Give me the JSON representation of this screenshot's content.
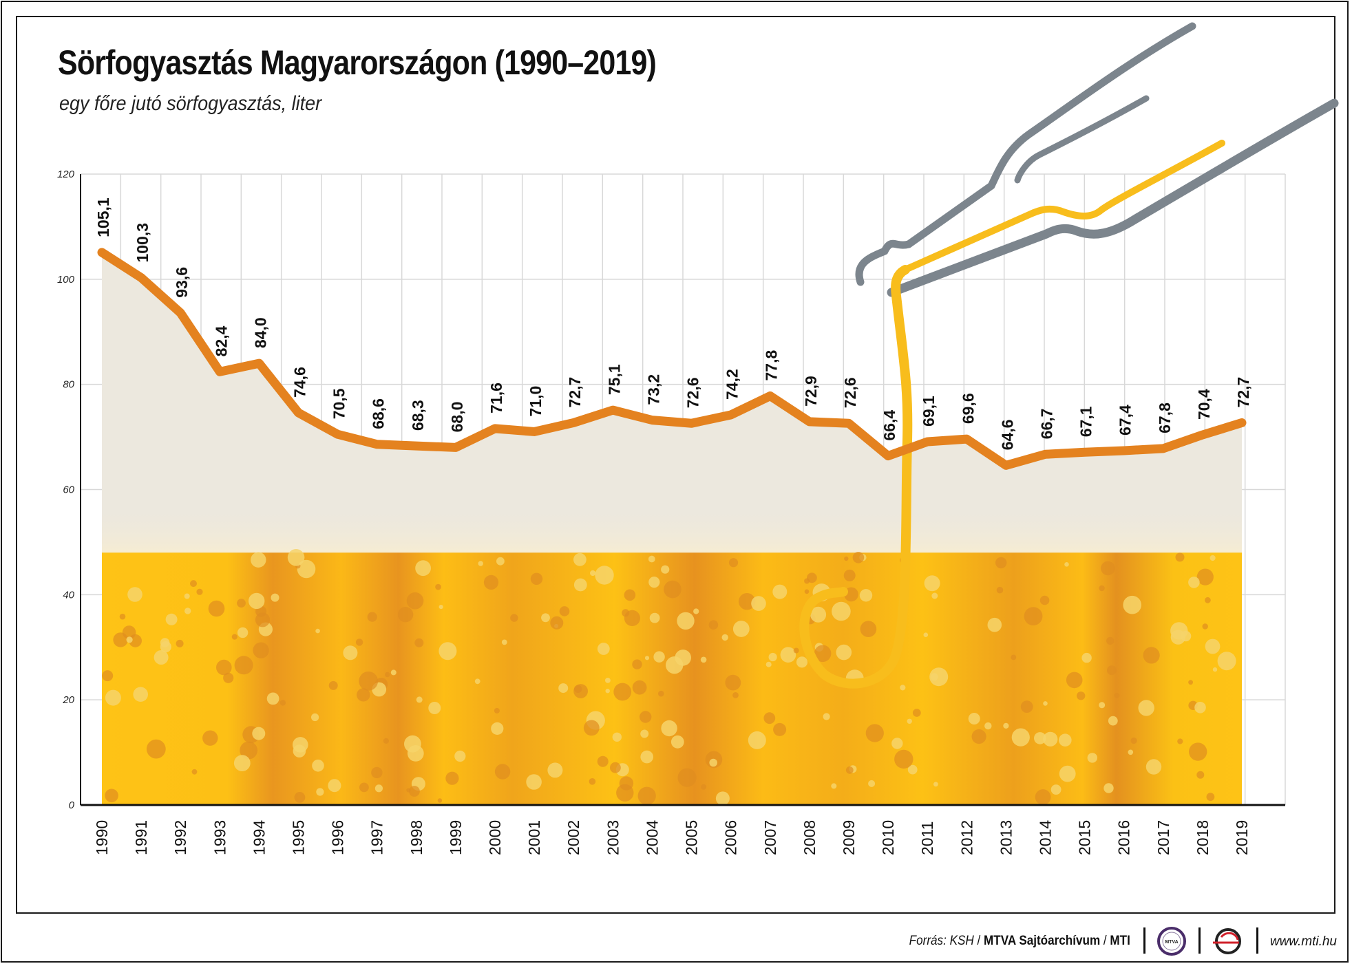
{
  "header": {
    "title": "Sörfogyasztás Magyarországon (1990–2019)",
    "subtitle": "egy főre jutó sörfogyasztás, liter"
  },
  "footer": {
    "source_label": "Forrás: KSH",
    "archive": "MTVA Sajtóarchívum",
    "agency": "MTI",
    "website": "www.mti.hu",
    "slash": "/"
  },
  "colors": {
    "line": "#e4821f",
    "area": "#ece8de",
    "beer_light": "#fdc115",
    "beer_dark": "#e4911f",
    "grid": "#d8d8d8",
    "bottle": "#7c858d",
    "pour": "#f8bd1c"
  },
  "chart_data": {
    "type": "line",
    "title": "Sörfogyasztás Magyarországon (1990–2019)",
    "ylabel": "egy főre jutó sörfogyasztás, liter",
    "xlabel": "",
    "ylim": [
      0,
      120
    ],
    "yticks": [
      0,
      20,
      40,
      60,
      80,
      100,
      120
    ],
    "grid": true,
    "categories": [
      "1990",
      "1991",
      "1992",
      "1993",
      "1994",
      "1995",
      "1996",
      "1997",
      "1998",
      "1999",
      "2000",
      "2001",
      "2002",
      "2003",
      "2004",
      "2005",
      "2006",
      "2007",
      "2008",
      "2009",
      "2010",
      "2011",
      "2012",
      "2013",
      "2014",
      "2015",
      "2016",
      "2017",
      "2018",
      "2019"
    ],
    "values": [
      105.1,
      100.3,
      93.6,
      82.4,
      84.0,
      74.6,
      70.5,
      68.6,
      68.3,
      68.0,
      71.6,
      71.0,
      72.7,
      75.1,
      73.2,
      72.6,
      74.2,
      77.8,
      72.9,
      72.6,
      66.4,
      69.1,
      69.6,
      64.6,
      66.7,
      67.1,
      67.4,
      67.8,
      70.4,
      72.7
    ],
    "labels": [
      "105,1",
      "100,3",
      "93,6",
      "82,4",
      "84,0",
      "74,6",
      "70,5",
      "68,6",
      "68,3",
      "68,0",
      "71,6",
      "71,0",
      "72,7",
      "75,1",
      "73,2",
      "72,6",
      "74,2",
      "77,8",
      "72,9",
      "72,6",
      "66,4",
      "69,1",
      "69,6",
      "64,6",
      "66,7",
      "67,1",
      "67,4",
      "67,8",
      "70,4",
      "72,7"
    ],
    "beer_level": 48
  }
}
